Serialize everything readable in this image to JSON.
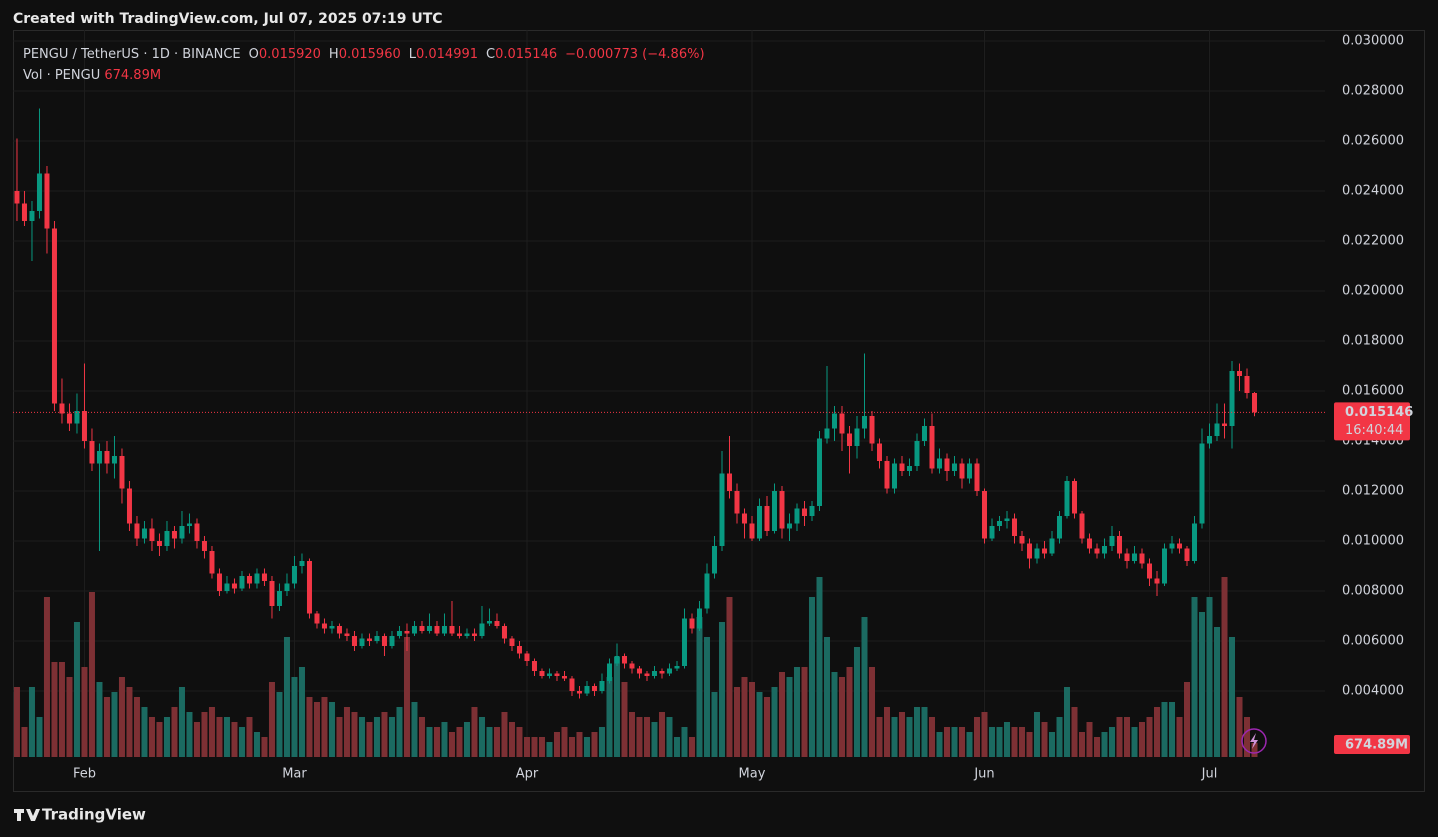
{
  "watermark": "Created with TradingView.com, Jul 07, 2025 07:19 UTC",
  "footer": "TradingView",
  "chart_data": {
    "type": "candlestick",
    "symbol": "PENGU / TetherUS · 1D · BINANCE",
    "ohlc_legend": [
      {
        "key": "O",
        "value": "0.015920"
      },
      {
        "key": "H",
        "value": "0.015960"
      },
      {
        "key": "L",
        "value": "0.014991"
      },
      {
        "key": "C",
        "value": "0.015146"
      }
    ],
    "change": "−0.000773 (−4.86%)",
    "open": [
      0.024,
      0.0235,
      0.0228,
      0.0232,
      0.0247,
      0.0225,
      0.0155,
      0.0151,
      0.0147,
      0.0152,
      0.014,
      0.0131,
      0.0136,
      0.0131,
      0.0134,
      0.0121,
      0.0107,
      0.0101,
      0.0105,
      0.01,
      0.0098,
      0.0104,
      0.0101,
      0.0106,
      0.0107,
      0.01,
      0.0096,
      0.0087,
      0.008,
      0.0083,
      0.0081,
      0.0086,
      0.0083,
      0.0087,
      0.0084,
      0.0074,
      0.008,
      0.0083,
      0.009,
      0.0092,
      0.0071,
      0.0067,
      0.0065,
      0.0066,
      0.0063,
      0.0062,
      0.0058,
      0.0061,
      0.006,
      0.0062,
      0.0058,
      0.0062,
      0.0064,
      0.0063,
      0.0066,
      0.0064,
      0.0066,
      0.0063,
      0.0066,
      0.0063,
      0.0062,
      0.0063,
      0.0062,
      0.0067,
      0.0068,
      0.0066,
      0.0061,
      0.0058,
      0.0055,
      0.0052,
      0.0048,
      0.0046,
      0.0047,
      0.0046,
      0.0045,
      0.004,
      0.0039,
      0.0042,
      0.004,
      0.0044,
      0.0051,
      0.0054,
      0.0051,
      0.0049,
      0.0047,
      0.0046,
      0.0048,
      0.0047,
      0.0049,
      0.005,
      0.0069,
      0.0065,
      0.0073,
      0.0087,
      0.0098,
      0.0127,
      0.012,
      0.0111,
      0.0107,
      0.0101,
      0.0114,
      0.0104,
      0.012,
      0.0105,
      0.0107,
      0.0113,
      0.011,
      0.0114,
      0.0141,
      0.0145,
      0.0151,
      0.0143,
      0.0138,
      0.0145,
      0.015,
      0.0139,
      0.0132,
      0.0121,
      0.0131,
      0.0128,
      0.013,
      0.014,
      0.0146,
      0.0129,
      0.0133,
      0.0128,
      0.0131,
      0.0125,
      0.0131,
      0.012,
      0.0101,
      0.0106,
      0.0108,
      0.0109,
      0.0102,
      0.0099,
      0.0093,
      0.0097,
      0.0095,
      0.0101,
      0.011,
      0.0124,
      0.0111,
      0.0101,
      0.0097,
      0.0095,
      0.0098,
      0.0102,
      0.0095,
      0.0092,
      0.0095,
      0.0091,
      0.0085,
      0.0083,
      0.0097,
      0.0099,
      0.0097,
      0.0092,
      0.0107,
      0.0139,
      0.0142,
      0.0147,
      0.0146,
      0.0168,
      0.0166,
      0.01592
    ],
    "high": [
      0.0261,
      0.024,
      0.0236,
      0.0273,
      0.025,
      0.0228,
      0.0165,
      0.0155,
      0.0159,
      0.0171,
      0.0145,
      0.0139,
      0.014,
      0.0142,
      0.0137,
      0.0124,
      0.011,
      0.0108,
      0.0109,
      0.0103,
      0.0108,
      0.0106,
      0.0112,
      0.0111,
      0.0109,
      0.0102,
      0.0098,
      0.0089,
      0.0086,
      0.0085,
      0.0088,
      0.0087,
      0.0089,
      0.0089,
      0.0086,
      0.0083,
      0.0087,
      0.0094,
      0.0095,
      0.0093,
      0.0072,
      0.0069,
      0.0068,
      0.0067,
      0.0065,
      0.0064,
      0.0063,
      0.0063,
      0.0064,
      0.0063,
      0.0064,
      0.0066,
      0.0067,
      0.0068,
      0.0068,
      0.0071,
      0.0068,
      0.0071,
      0.0076,
      0.0066,
      0.0065,
      0.0065,
      0.0074,
      0.0073,
      0.0071,
      0.0067,
      0.0062,
      0.006,
      0.0056,
      0.0053,
      0.0049,
      0.0049,
      0.0048,
      0.0048,
      0.0046,
      0.0042,
      0.0044,
      0.0043,
      0.0047,
      0.0053,
      0.0059,
      0.0055,
      0.0052,
      0.005,
      0.0048,
      0.005,
      0.0049,
      0.0051,
      0.0052,
      0.0073,
      0.0071,
      0.0076,
      0.0091,
      0.0102,
      0.0136,
      0.0142,
      0.0123,
      0.0113,
      0.011,
      0.0117,
      0.0118,
      0.0123,
      0.0122,
      0.0111,
      0.0115,
      0.0116,
      0.0116,
      0.0144,
      0.017,
      0.0154,
      0.0154,
      0.0146,
      0.015,
      0.0175,
      0.0152,
      0.0141,
      0.0134,
      0.0133,
      0.0134,
      0.0133,
      0.0143,
      0.0149,
      0.0151,
      0.0137,
      0.0135,
      0.0134,
      0.0133,
      0.0133,
      0.0133,
      0.0121,
      0.0109,
      0.011,
      0.0112,
      0.0111,
      0.0104,
      0.0101,
      0.0099,
      0.01,
      0.0104,
      0.0112,
      0.0126,
      0.0125,
      0.0112,
      0.0103,
      0.0099,
      0.0101,
      0.0106,
      0.0104,
      0.0097,
      0.0098,
      0.0097,
      0.0093,
      0.0088,
      0.0099,
      0.0102,
      0.0101,
      0.0098,
      0.011,
      0.0145,
      0.0147,
      0.0155,
      0.0155,
      0.0172,
      0.0171,
      0.0169,
      0.01596
    ],
    "low": [
      0.0228,
      0.0226,
      0.0212,
      0.0229,
      0.0215,
      0.0152,
      0.0147,
      0.0144,
      0.0143,
      0.0137,
      0.0128,
      0.0096,
      0.0127,
      0.0125,
      0.0115,
      0.0104,
      0.0098,
      0.0099,
      0.0096,
      0.0094,
      0.0096,
      0.0097,
      0.0099,
      0.0103,
      0.0097,
      0.0093,
      0.0085,
      0.0078,
      0.0079,
      0.0079,
      0.008,
      0.0081,
      0.0081,
      0.0082,
      0.0069,
      0.0072,
      0.0078,
      0.0081,
      0.0087,
      0.0069,
      0.0065,
      0.0063,
      0.0063,
      0.0061,
      0.006,
      0.0056,
      0.0057,
      0.0058,
      0.0059,
      0.0054,
      0.0057,
      0.0061,
      0.0056,
      0.0062,
      0.0063,
      0.0063,
      0.0062,
      0.0062,
      0.0062,
      0.0061,
      0.0061,
      0.006,
      0.0061,
      0.0066,
      0.0065,
      0.0059,
      0.0056,
      0.0053,
      0.005,
      0.0046,
      0.0045,
      0.0045,
      0.0044,
      0.0044,
      0.0038,
      0.0037,
      0.0038,
      0.0038,
      0.0039,
      0.0043,
      0.005,
      0.0049,
      0.0047,
      0.0045,
      0.0044,
      0.0045,
      0.0045,
      0.0046,
      0.0048,
      0.0049,
      0.0063,
      0.0064,
      0.0071,
      0.0085,
      0.0096,
      0.0117,
      0.0107,
      0.0101,
      0.01,
      0.01,
      0.0102,
      0.0103,
      0.0101,
      0.01,
      0.0104,
      0.0106,
      0.0108,
      0.0112,
      0.0139,
      0.014,
      0.0136,
      0.0127,
      0.0133,
      0.0141,
      0.0136,
      0.0129,
      0.0119,
      0.0119,
      0.0126,
      0.0126,
      0.0128,
      0.0138,
      0.0127,
      0.0127,
      0.0124,
      0.0126,
      0.0121,
      0.0123,
      0.0118,
      0.0099,
      0.01,
      0.0104,
      0.0105,
      0.0099,
      0.0096,
      0.0089,
      0.0091,
      0.0093,
      0.0094,
      0.0099,
      0.0109,
      0.0109,
      0.0099,
      0.0095,
      0.0093,
      0.0093,
      0.0096,
      0.0093,
      0.0089,
      0.0091,
      0.0089,
      0.0082,
      0.0078,
      0.0082,
      0.0095,
      0.0095,
      0.009,
      0.0091,
      0.0105,
      0.0137,
      0.014,
      0.0141,
      0.0137,
      0.016,
      0.0157,
      0.014991
    ],
    "close": [
      0.0235,
      0.0228,
      0.0232,
      0.0247,
      0.0225,
      0.0155,
      0.0151,
      0.0147,
      0.0152,
      0.014,
      0.0131,
      0.0136,
      0.0131,
      0.0134,
      0.0121,
      0.0107,
      0.0101,
      0.0105,
      0.01,
      0.0098,
      0.0104,
      0.0101,
      0.0106,
      0.0107,
      0.01,
      0.0096,
      0.0087,
      0.008,
      0.0083,
      0.0081,
      0.0086,
      0.0083,
      0.0087,
      0.0084,
      0.0074,
      0.008,
      0.0083,
      0.009,
      0.0092,
      0.0071,
      0.0067,
      0.0065,
      0.0066,
      0.0063,
      0.0062,
      0.0058,
      0.0061,
      0.006,
      0.0062,
      0.0058,
      0.0062,
      0.0064,
      0.0063,
      0.0066,
      0.0064,
      0.0066,
      0.0063,
      0.0066,
      0.0063,
      0.0062,
      0.0063,
      0.0062,
      0.0067,
      0.0068,
      0.0066,
      0.0061,
      0.0058,
      0.0055,
      0.0052,
      0.0048,
      0.0046,
      0.0047,
      0.0046,
      0.0045,
      0.004,
      0.0039,
      0.0042,
      0.004,
      0.0044,
      0.0051,
      0.0054,
      0.0051,
      0.0049,
      0.0047,
      0.0046,
      0.0048,
      0.0047,
      0.0049,
      0.005,
      0.0069,
      0.0065,
      0.0073,
      0.0087,
      0.0098,
      0.0127,
      0.012,
      0.0111,
      0.0107,
      0.0101,
      0.0114,
      0.0104,
      0.012,
      0.0105,
      0.0107,
      0.0113,
      0.011,
      0.0114,
      0.0141,
      0.0145,
      0.0151,
      0.0143,
      0.0138,
      0.0145,
      0.015,
      0.0139,
      0.0132,
      0.0121,
      0.0131,
      0.0128,
      0.013,
      0.014,
      0.0146,
      0.0129,
      0.0133,
      0.0128,
      0.0131,
      0.0125,
      0.0131,
      0.012,
      0.0101,
      0.0106,
      0.0108,
      0.0109,
      0.0102,
      0.0099,
      0.0093,
      0.0097,
      0.0095,
      0.0101,
      0.011,
      0.0124,
      0.0111,
      0.0101,
      0.0097,
      0.0095,
      0.0098,
      0.0102,
      0.0095,
      0.0092,
      0.0095,
      0.0091,
      0.0085,
      0.0083,
      0.0097,
      0.0099,
      0.0097,
      0.0092,
      0.0107,
      0.0139,
      0.0142,
      0.0147,
      0.0146,
      0.0168,
      0.0166,
      0.01592,
      0.015146
    ],
    "up_color": "#089981",
    "down_color": "#f23645",
    "volume": {
      "name": "Vol · PENGU",
      "last_label": "674.89M",
      "up_color": "#1b6a61",
      "down_color": "#7d3034",
      "values": [
        3360000000.0,
        1440000000.0,
        3360000000.0,
        1920000000.0,
        7680000000.0,
        4560000000.0,
        4560000000.0,
        3840000000.0,
        6480000000.0,
        4320000000.0,
        7920000000.0,
        3600000000.0,
        2880000000.0,
        3120000000.0,
        3840000000.0,
        3360000000.0,
        2880000000.0,
        2400000000.0,
        1920000000.0,
        1680000000.0,
        1920000000.0,
        2400000000.0,
        3360000000.0,
        2160000000.0,
        1680000000.0,
        2160000000.0,
        2400000000.0,
        1920000000.0,
        1920000000.0,
        1680000000.0,
        1440000000.0,
        1920000000.0,
        1200000000.0,
        960000000.0,
        3600000000.0,
        3120000000.0,
        5760000000.0,
        3840000000.0,
        4320000000.0,
        2880000000.0,
        2640000000.0,
        2880000000.0,
        2640000000.0,
        1920000000.0,
        2400000000.0,
        2160000000.0,
        1920000000.0,
        1680000000.0,
        1920000000.0,
        2160000000.0,
        1920000000.0,
        2400000000.0,
        5760000000.0,
        2640000000.0,
        1920000000.0,
        1440000000.0,
        1440000000.0,
        1680000000.0,
        1200000000.0,
        1440000000.0,
        1680000000.0,
        2400000000.0,
        1920000000.0,
        1440000000.0,
        1440000000.0,
        2160000000.0,
        1680000000.0,
        1440000000.0,
        960000000.0,
        960000000.0,
        960000000.0,
        720000000.0,
        1200000000.0,
        1440000000.0,
        960000000.0,
        1200000000.0,
        960000000.0,
        1200000000.0,
        1440000000.0,
        3840000000.0,
        4800000000.0,
        3600000000.0,
        2160000000.0,
        1920000000.0,
        1920000000.0,
        1680000000.0,
        2160000000.0,
        1920000000.0,
        960000000.0,
        1440000000.0,
        960000000.0,
        6720000000.0,
        5760000000.0,
        3120000000.0,
        6480000000.0,
        7680000000.0,
        3360000000.0,
        3840000000.0,
        3600000000.0,
        3120000000.0,
        2880000000.0,
        3360000000.0,
        4080000000.0,
        3840000000.0,
        4320000000.0,
        4320000000.0,
        7680000000.0,
        8640000000.0,
        5760000000.0,
        4080000000.0,
        3840000000.0,
        4320000000.0,
        5280000000.0,
        6720000000.0,
        4320000000.0,
        1920000000.0,
        2400000000.0,
        1920000000.0,
        2160000000.0,
        1920000000.0,
        2400000000.0,
        2400000000.0,
        1920000000.0,
        1200000000.0,
        1440000000.0,
        1440000000.0,
        1440000000.0,
        1200000000.0,
        1920000000.0,
        2160000000.0,
        1440000000.0,
        1440000000.0,
        1680000000.0,
        1440000000.0,
        1440000000.0,
        1200000000.0,
        2160000000.0,
        1680000000.0,
        1200000000.0,
        1920000000.0,
        3360000000.0,
        2400000000.0,
        1200000000.0,
        1680000000.0,
        960000000.0,
        1200000000.0,
        1440000000.0,
        1920000000.0,
        1920000000.0,
        1440000000.0,
        1680000000.0,
        1920000000.0,
        2400000000.0,
        2640000000.0,
        2640000000.0,
        1920000000.0,
        3600000000.0,
        7680000000.0,
        6960000000.0,
        7680000000.0,
        6240000000.0,
        8640000000.0,
        5760000000.0,
        2880000000.0,
        1920000000.0,
        674890000
      ]
    },
    "last_price": {
      "label": "0.015146",
      "countdown": "16:40:44"
    },
    "xlim": [
      -0.53,
      174.4
    ],
    "xticks": [
      {
        "value": 9,
        "label": "Feb"
      },
      {
        "value": 37,
        "label": "Mar"
      },
      {
        "value": 68,
        "label": "Apr"
      },
      {
        "value": 98,
        "label": "May"
      },
      {
        "value": 129,
        "label": "Jun"
      },
      {
        "value": 159,
        "label": "Jul"
      }
    ],
    "ylim": [
      0.00136,
      0.03044
    ],
    "yticks": [
      {
        "value": 0.004,
        "label": "0.004000"
      },
      {
        "value": 0.006,
        "label": "0.006000"
      },
      {
        "value": 0.008,
        "label": "0.008000"
      },
      {
        "value": 0.01,
        "label": "0.010000"
      },
      {
        "value": 0.012,
        "label": "0.012000"
      },
      {
        "value": 0.014,
        "label": "0.014000"
      },
      {
        "value": 0.016,
        "label": "0.016000"
      },
      {
        "value": 0.018,
        "label": "0.018000"
      },
      {
        "value": 0.02,
        "label": "0.020000"
      },
      {
        "value": 0.022,
        "label": "0.022000"
      },
      {
        "value": 0.024,
        "label": "0.024000"
      },
      {
        "value": 0.026,
        "label": "0.026000"
      },
      {
        "value": 0.028,
        "label": "0.028000"
      },
      {
        "value": 0.03,
        "label": "0.030000"
      }
    ],
    "grid": true
  }
}
